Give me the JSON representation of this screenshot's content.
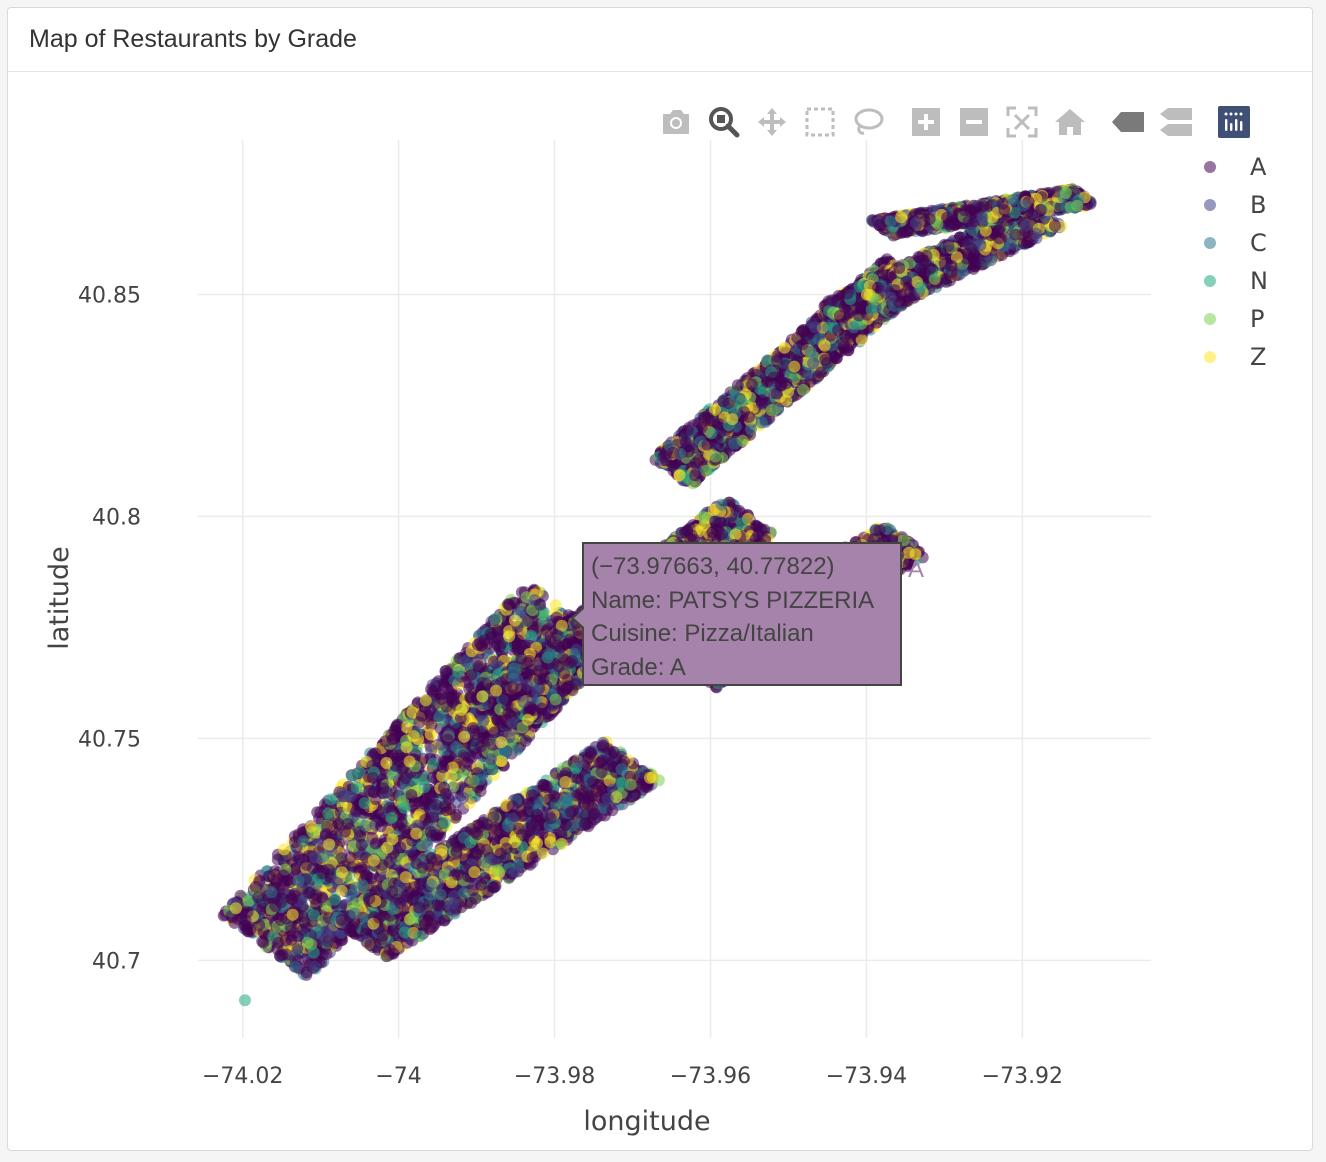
{
  "card": {
    "title": "Map of Restaurants by Grade"
  },
  "modebar": {
    "buttons": [
      {
        "name": "camera-icon"
      },
      {
        "name": "zoom-icon"
      },
      {
        "name": "pan-icon"
      },
      {
        "name": "box-select-icon"
      },
      {
        "name": "lasso-select-icon"
      },
      {
        "name": "zoom-in-icon"
      },
      {
        "name": "zoom-out-icon"
      },
      {
        "name": "autoscale-icon"
      },
      {
        "name": "reset-axes-icon"
      },
      {
        "name": "hover-closest-icon"
      },
      {
        "name": "hover-compare-icon"
      },
      {
        "name": "plotly-logo-icon"
      }
    ]
  },
  "tooltip": {
    "coords": "(−73.97663, 40.77822)",
    "name": "Name: PATSYS PIZZERIA",
    "cuisine": "Cuisine: Pizza/Italian",
    "grade": "Grade: A",
    "trace": "A"
  },
  "chart_data": {
    "type": "scatter",
    "xlabel": "longitude",
    "ylabel": "latitude",
    "xlim": [
      -74.0315,
      -73.9035
    ],
    "ylim": [
      40.6825,
      40.8848
    ],
    "xticks": [
      -74.02,
      -74,
      -73.98,
      -73.96,
      -73.94,
      -73.92
    ],
    "xtick_labels": [
      "−74.02",
      "−74",
      "−73.98",
      "−73.96",
      "−73.94",
      "−73.92"
    ],
    "yticks": [
      40.7,
      40.75,
      40.8,
      40.85
    ],
    "ytick_labels": [
      "40.7",
      "40.75",
      "40.8",
      "40.85"
    ],
    "grid": true,
    "legend_position": "right",
    "series": [
      {
        "name": "A",
        "color": "#440154"
      },
      {
        "name": "B",
        "color": "#414487"
      },
      {
        "name": "C",
        "color": "#2a788e"
      },
      {
        "name": "N",
        "color": "#22a884"
      },
      {
        "name": "P",
        "color": "#7ad151"
      },
      {
        "name": "Z",
        "color": "#fde725"
      }
    ],
    "highlight_point": {
      "x": -73.97663,
      "y": 40.77822,
      "series": "A"
    },
    "outlier_points": [
      {
        "x": -74.0197,
        "y": 40.691,
        "series": "N"
      }
    ],
    "clusters": [
      {
        "x0": -74.017,
        "y0": 40.703,
        "x1": -73.978,
        "y1": 40.778,
        "width": 0.016
      },
      {
        "x0": -74.005,
        "y0": 40.705,
        "x1": -73.97,
        "y1": 40.745,
        "width": 0.01
      },
      {
        "x0": -73.988,
        "y0": 40.755,
        "x1": -73.955,
        "y1": 40.8,
        "width": 0.009
      },
      {
        "x0": -73.962,
        "y0": 40.765,
        "x1": -73.935,
        "y1": 40.795,
        "width": 0.008
      },
      {
        "x0": -73.965,
        "y0": 40.81,
        "x1": -73.935,
        "y1": 40.855,
        "width": 0.007
      },
      {
        "x0": -73.944,
        "y0": 40.845,
        "x1": -73.917,
        "y1": 40.868,
        "width": 0.006
      },
      {
        "x0": -73.938,
        "y0": 40.865,
        "x1": -73.912,
        "y1": 40.872,
        "width": 0.004
      }
    ]
  }
}
